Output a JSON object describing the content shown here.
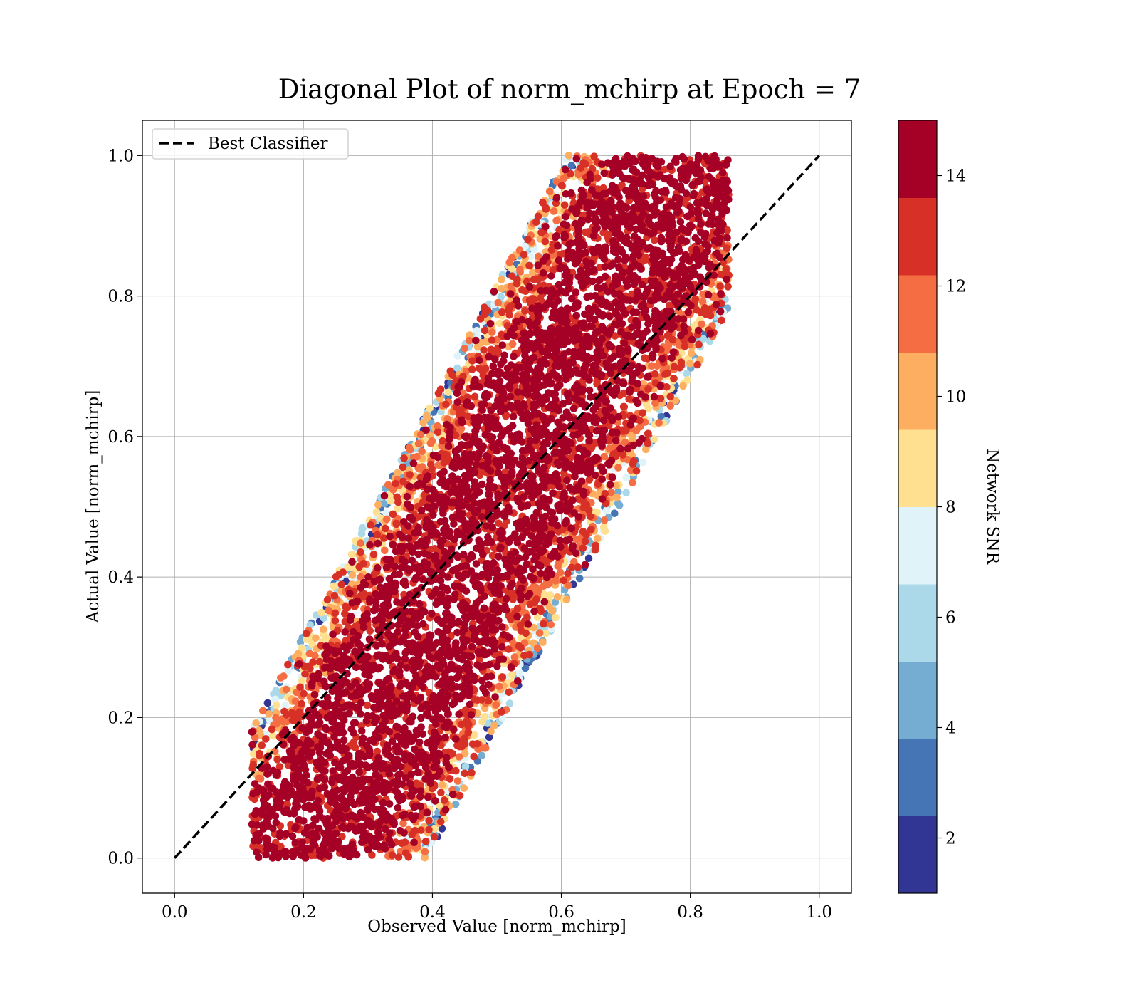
{
  "chart_data": {
    "type": "scatter",
    "title": "Diagonal Plot of norm_mchirp at Epoch = 7",
    "xlabel": "Observed Value [norm_mchirp]",
    "ylabel": "Actual Value [norm_mchirp]",
    "xlim": [
      -0.05,
      1.05
    ],
    "ylim": [
      -0.05,
      1.05
    ],
    "x_ticks": [
      "0.0",
      "0.2",
      "0.4",
      "0.6",
      "0.8",
      "1.0"
    ],
    "y_ticks": [
      "0.0",
      "0.2",
      "0.4",
      "0.6",
      "0.8",
      "1.0"
    ],
    "grid": true,
    "legend": {
      "placement": "upper-left",
      "entries": [
        "Best Classifier"
      ]
    },
    "reference_line": {
      "name": "Best Classifier",
      "style": "dashed",
      "color": "#000000",
      "x": [
        0.0,
        1.0
      ],
      "y": [
        0.0,
        1.0
      ]
    },
    "colorbar": {
      "label": "Network SNR",
      "range": [
        1,
        15
      ],
      "ticks": [
        "2",
        "4",
        "6",
        "8",
        "10",
        "12",
        "14"
      ],
      "colors": [
        "#313695",
        "#4575b4",
        "#74add1",
        "#abd9e9",
        "#e0f3f8",
        "#fee090",
        "#fdae61",
        "#f46d43",
        "#d73027",
        "#a50026"
      ]
    },
    "scatter_description": {
      "x_range": [
        0.12,
        0.86
      ],
      "y_range": [
        0.0,
        1.0
      ],
      "trend": "points spread in a band around y = x; higher SNR near the diagonal, lower SNR toward the upper-left and lower-right edges",
      "approx_point_count": 20000
    }
  }
}
